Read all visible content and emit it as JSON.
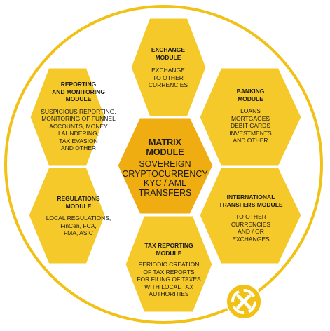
{
  "colors": {
    "hex_fill": "#f5c92a",
    "hex_stroke": "#ffffff",
    "center_fill": "#f0ad12",
    "ring": "#f2c116",
    "badge_fill": "#f2c116",
    "badge_mark": "#ffffff"
  },
  "modules": {
    "exchange": {
      "title": "EXCHANGE\nMODULE",
      "body": "EXCHANGE\nTO OTHER\nCURRENCIES"
    },
    "banking": {
      "title": "BANKING\nMODULE",
      "body": "LOANS\nMORTGAGES\nDEBIT CARDS\nINVESTMENTS\nAND OTHER"
    },
    "reporting": {
      "title": "REPORTING\nAND MONITORING\nMODULE",
      "body": "SUSPICIOUS REPORTING,\nMONITORING OF FUNNEL\nACCOUNTS, MONEY\nLAUNDERING,\nTAX EVASION\nAND OTHER"
    },
    "matrix": {
      "title": "MATRIX\nMODULE",
      "body": "SOVEREIGN\nCRYPTOCURRENCY\nKYC / AML\nTRANSFERS"
    },
    "regulations": {
      "title": "REGULATIONS\nMODULE",
      "body": "LOCAL REGULATIONS,\nFinCen, FCA,\nFMA, ASIC"
    },
    "international": {
      "title": "INTERNATIONAL\nTRANSFERS MODULE",
      "body": "TO OTHER\nCURRENCIES\nAND / OR\nEXCHANGES"
    },
    "tax": {
      "title": "TAX REPORTING\nMODULE",
      "body": "PERIODIC CREATION\nOF TAX REPORTS\nFOR FILING OF TAXES\nWITH LOCAL TAX\nAUTHORITIES"
    }
  },
  "logo": {
    "icon": "matrix-logo-icon"
  }
}
